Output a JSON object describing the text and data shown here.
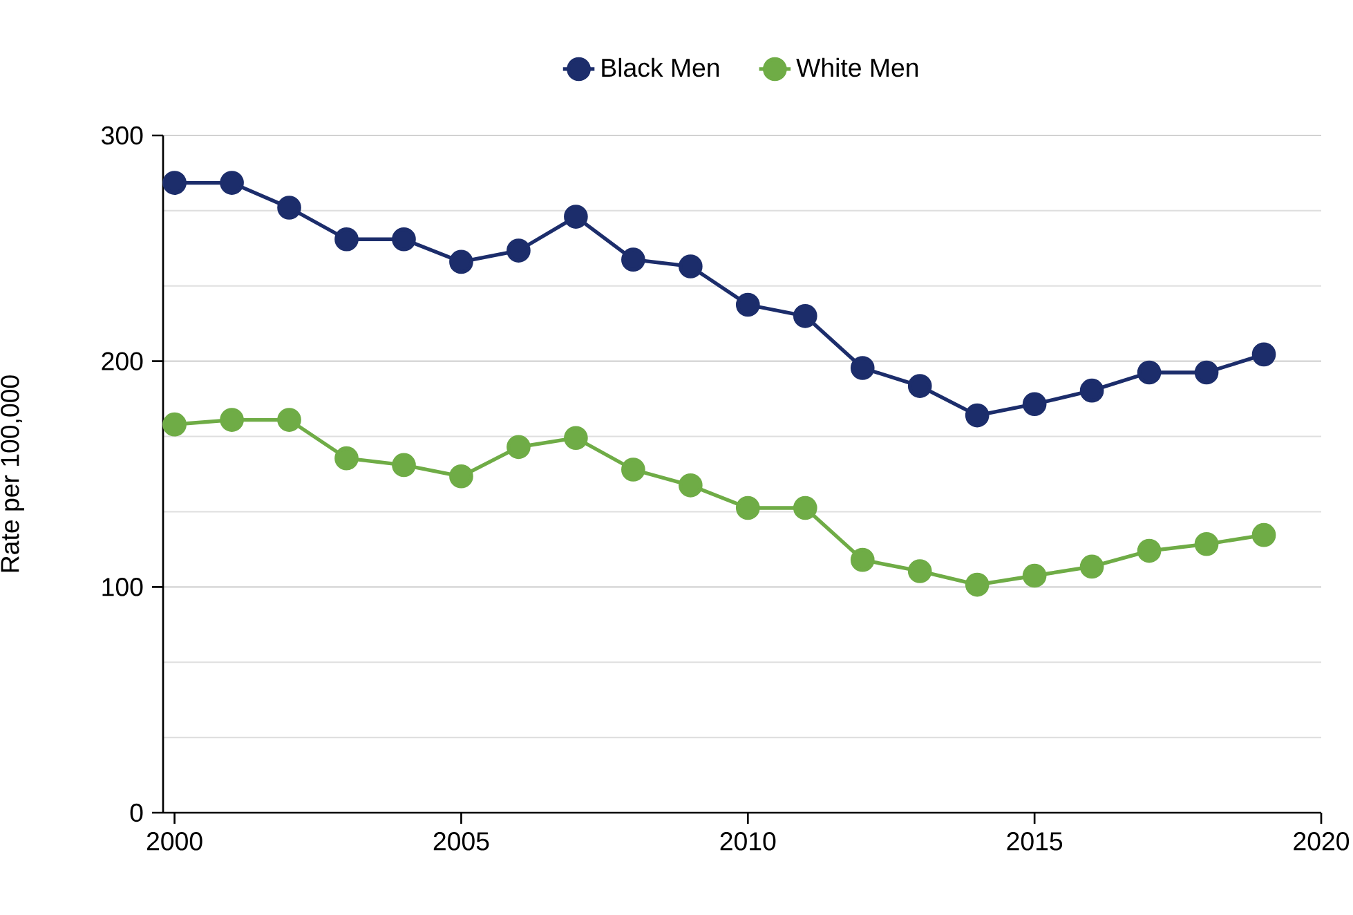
{
  "chart_data": {
    "type": "line",
    "ylabel": "Rate per 100,000",
    "x": [
      2000,
      2001,
      2002,
      2003,
      2004,
      2005,
      2006,
      2007,
      2008,
      2009,
      2010,
      2011,
      2012,
      2013,
      2014,
      2015,
      2016,
      2017,
      2018,
      2019
    ],
    "series": [
      {
        "name": "Black Men",
        "color": "#1c2d6b",
        "values": [
          279,
          279,
          268,
          254,
          254,
          244,
          249,
          264,
          245,
          242,
          225,
          220,
          197,
          189,
          176,
          181,
          187,
          195,
          195,
          203
        ]
      },
      {
        "name": "White Men",
        "color": "#6fac46",
        "values": [
          172,
          174,
          174,
          157,
          154,
          149,
          162,
          166,
          152,
          145,
          135,
          135,
          112,
          107,
          101,
          105,
          109,
          116,
          119,
          123
        ]
      }
    ],
    "xlim": [
      1999.8,
      2020
    ],
    "xticks": [
      2000,
      2005,
      2010,
      2015,
      2020
    ],
    "ylim": [
      0,
      300
    ],
    "yticks": [
      0,
      {
        "value": 33.33,
        "label": null
      },
      {
        "value": 66.67,
        "label": null
      },
      100,
      {
        "value": 133.33,
        "label": null
      },
      {
        "value": 166.67,
        "label": null
      },
      200,
      {
        "value": 233.33,
        "label": null
      },
      {
        "value": 266.67,
        "label": null
      },
      300
    ],
    "grid": "y",
    "legend": "top",
    "marker": "circle"
  }
}
